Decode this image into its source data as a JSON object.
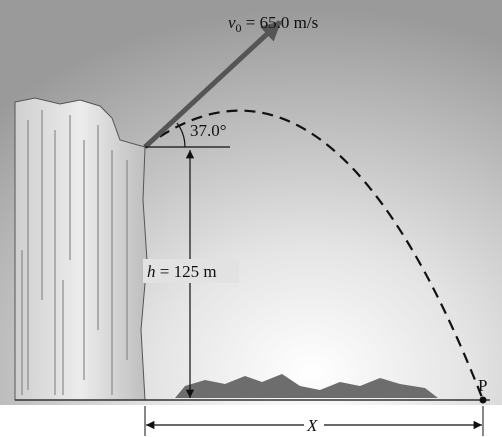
{
  "velocity_label": {
    "symbol": "v",
    "subscript": "0",
    "rest": " = 65.0 m/s"
  },
  "angle_label": "37.0°",
  "height_label": {
    "symbol": "h",
    "rest": " = 125 m"
  },
  "point_label": "P",
  "distance_label": "X"
}
